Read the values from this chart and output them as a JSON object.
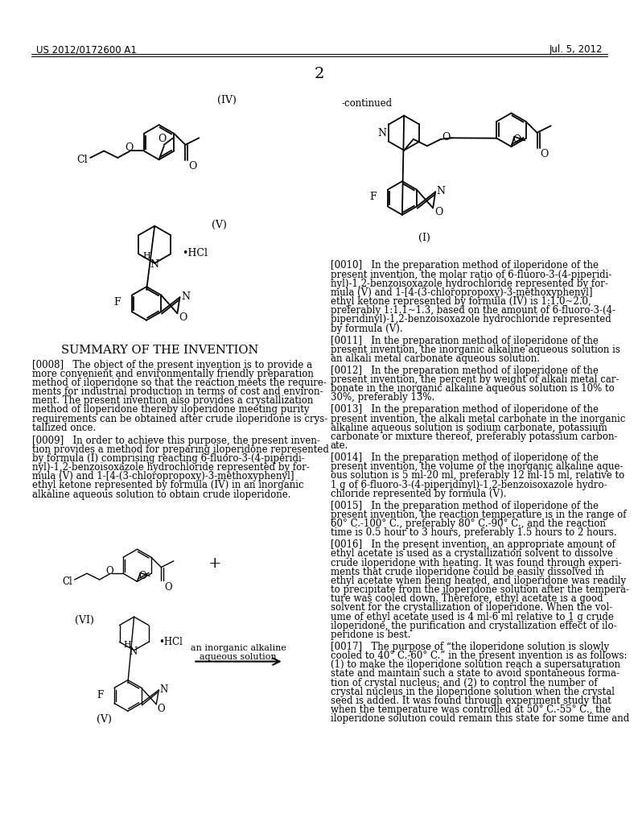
{
  "page_header_left": "US 2012/0172600 A1",
  "page_header_right": "Jul. 5, 2012",
  "page_number": "2",
  "continued_label": "-continued",
  "summary_title": "SUMMARY OF THE INVENTION",
  "background_color": "#ffffff",
  "label_IV": "(IV)",
  "label_V": "(V)",
  "label_I": "(I)",
  "label_VI": "(VI)",
  "left_paras": [
    [
      "[0008]",
      "   The object of the present invention is to provide a",
      "more convenient and environmentally friendly preparation",
      "method of iloperidone so that the reaction meets the require-",
      "ments for industrial production in terms of cost and environ-",
      "ment. The present invention also provides a crystallization",
      "method of iloperidone thereby iloperidone meeting purity",
      "requirements can be obtained after crude iloperidone is crys-",
      "tallized once."
    ],
    [
      "[0009]",
      "   In order to achieve this purpose, the present inven-",
      "tion provides a method for preparing iloperidone represented",
      "by formula (I) comprising reacting 6-fluoro-3-(4-piperidi-",
      "nyl)-1,2-benzoisoxazole hydrochloride represented by for-",
      "mula (V) and 1-[4-(3-chloropropoxy)-3-methoxyphenyl]",
      "ethyl ketone represented by formula (IV) in an inorganic",
      "alkaline aqueous solution to obtain crude iloperidone."
    ]
  ],
  "right_paras": [
    [
      "[0010]",
      "   In the preparation method of iloperidone of the",
      "present invention, the molar ratio of 6-fluoro-3-(4-piperidi-",
      "nyl)-1,2-benzoisoxazole hydrochloride represented by for-",
      "mula (V) and 1-[4-(3-chloropropoxy)-3-methoxyphenyl]",
      "ethyl ketone represented by formula (IV) is 1:1.0~2.0,",
      "preferably 1:1.1~1.3, based on the amount of 6-fluoro-3-(4-",
      "piperidinyl)-1,2-benzoisoxazole hydrochloride represented",
      "by formula (V)."
    ],
    [
      "[0011]",
      "   In the preparation method of iloperidone of the",
      "present invention, the inorganic alkaline aqueous solution is",
      "an alkali metal carbonate aqueous solution."
    ],
    [
      "[0012]",
      "   In the preparation method of iloperidone of the",
      "present invention, the percent by weight of alkali metal car-",
      "bonate in the inorganic alkaline aqueous solution is 10% to",
      "30%, preferably 13%."
    ],
    [
      "[0013]",
      "   In the preparation method of iloperidone of the",
      "present invention, the alkali metal carbonate in the inorganic",
      "alkaline aqueous solution is sodium carbonate, potassium",
      "carbonate or mixture thereof, preferably potassium carbon-",
      "ate."
    ],
    [
      "[0014]",
      "   In the preparation method of iloperidone of the",
      "present invention, the volume of the inorganic alkaline aque-",
      "ous solution is 5 ml-20 ml, preferably 12 ml-15 ml, relative to",
      "1 g of 6-fluoro-3-(4-piperidinyl)-1,2-benzoisoxazole hydro-",
      "chloride represented by formula (V)."
    ],
    [
      "[0015]",
      "   In the preparation method of iloperidone of the",
      "present invention, the reaction temperature is in the range of",
      "60° C.-100° C., preferably 80° C.-90° C., and the reaction",
      "time is 0.5 hour to 3 hours, preferably 1.5 hours to 2 hours."
    ],
    [
      "[0016]",
      "   In the present invention, an appropriate amount of",
      "ethyl acetate is used as a crystallization solvent to dissolve",
      "crude iloperidone with heating. It was found through experi-",
      "ments that crude iloperidone could be easily dissolved in",
      "ethyl acetate when being heated, and iloperidone was readily",
      "to precipitate from the iloperidone solution after the tempera-",
      "ture was cooled down. Therefore, ethyl acetate is a good",
      "solvent for the crystallization of iloperidone. When the vol-",
      "ume of ethyl acetate used is 4 ml-6 ml relative to 1 g crude",
      "iloperidone, the purification and crystallization effect of ilo-",
      "peridone is best."
    ],
    [
      "[0017]",
      "   The purpose of “the iloperidone solution is slowly",
      "cooled to 40° C.-60° C.” in the present invention is as follows:",
      "(1) to make the iloperidone solution reach a supersaturation",
      "state and maintain such a state to avoid spontaneous forma-",
      "tion of crystal nucleus; and (2) to control the number of",
      "crystal nucleus in the iloperidone solution when the crystal",
      "seed is added. It was found through experiment study that",
      "when the temperature was controlled at 50° C.-55° C., the",
      "iloperidone solution could remain this state for some time and"
    ]
  ]
}
